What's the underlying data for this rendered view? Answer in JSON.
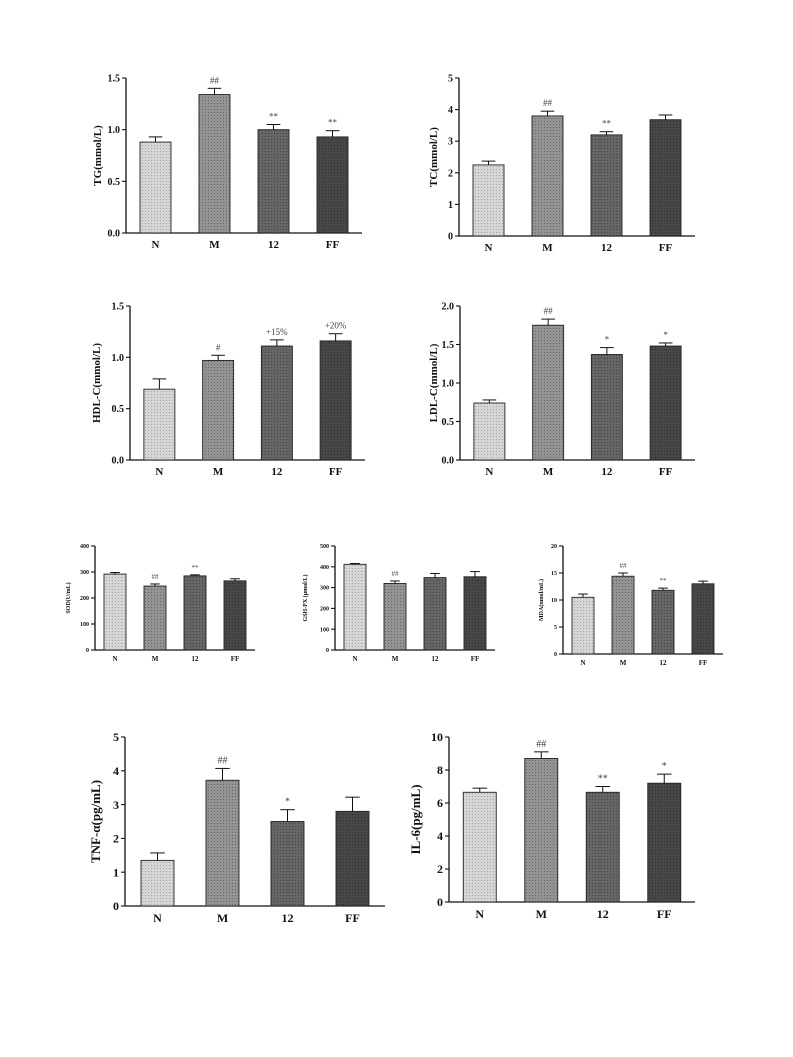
{
  "chart_data": [
    {
      "type": "bar",
      "ylabel": "TG(mmol/L)",
      "categories": [
        "N",
        "M",
        "12",
        "FF"
      ],
      "values": [
        0.88,
        1.34,
        1.0,
        0.93
      ],
      "errors": [
        0.05,
        0.06,
        0.05,
        0.06
      ],
      "annotations": [
        "",
        "##",
        "**",
        "**"
      ],
      "ylim": [
        0,
        1.5
      ],
      "yticks": [
        "0.0",
        "0.5",
        "1.0",
        "1.5"
      ]
    },
    {
      "type": "bar",
      "ylabel": "TC(mmol/L)",
      "categories": [
        "N",
        "M",
        "12",
        "FF"
      ],
      "values": [
        2.25,
        3.8,
        3.2,
        3.68
      ],
      "errors": [
        0.12,
        0.15,
        0.1,
        0.15
      ],
      "annotations": [
        "",
        "##",
        "**",
        ""
      ],
      "ylim": [
        0,
        5
      ],
      "yticks": [
        "0",
        "1",
        "2",
        "3",
        "4",
        "5"
      ]
    },
    {
      "type": "bar",
      "ylabel": "HDL-C(mmol/L)",
      "categories": [
        "N",
        "M",
        "12",
        "FF"
      ],
      "values": [
        0.69,
        0.97,
        1.11,
        1.16
      ],
      "errors": [
        0.1,
        0.05,
        0.06,
        0.07
      ],
      "annotations": [
        "",
        "#",
        "+15%",
        "+20%"
      ],
      "ylim": [
        0,
        1.5
      ],
      "yticks": [
        "0.0",
        "0.5",
        "1.0",
        "1.5"
      ]
    },
    {
      "type": "bar",
      "ylabel": "LDL-C(mmol/L)",
      "categories": [
        "N",
        "M",
        "12",
        "FF"
      ],
      "values": [
        0.74,
        1.75,
        1.37,
        1.48
      ],
      "errors": [
        0.04,
        0.08,
        0.09,
        0.04
      ],
      "annotations": [
        "",
        "##",
        "*",
        "*"
      ],
      "ylim": [
        0,
        2.0
      ],
      "yticks": [
        "0.0",
        "0.5",
        "1.0",
        "1.5",
        "2.0"
      ]
    },
    {
      "type": "bar",
      "ylabel": "SOD(U/mL)",
      "categories": [
        "N",
        "M",
        "12",
        "FF"
      ],
      "values": [
        292,
        246,
        285,
        266
      ],
      "errors": [
        6,
        8,
        4,
        8
      ],
      "annotations": [
        "",
        "##",
        "**",
        ""
      ],
      "ylim": [
        0,
        400
      ],
      "yticks": [
        "0",
        "100",
        "200",
        "300",
        "400"
      ]
    },
    {
      "type": "bar",
      "ylabel": "GSH-PX (µmol/L)",
      "categories": [
        "N",
        "M",
        "12",
        "FF"
      ],
      "values": [
        412,
        320,
        348,
        352
      ],
      "errors": [
        4,
        12,
        20,
        25
      ],
      "annotations": [
        "",
        "##",
        "",
        ""
      ],
      "ylim": [
        0,
        500
      ],
      "yticks": [
        "0",
        "100",
        "200",
        "300",
        "400",
        "500"
      ]
    },
    {
      "type": "bar",
      "ylabel": "MDA(nmol/mL)",
      "categories": [
        "N",
        "M",
        "12",
        "FF"
      ],
      "values": [
        10.5,
        14.4,
        11.8,
        13.0
      ],
      "errors": [
        0.6,
        0.6,
        0.4,
        0.5
      ],
      "annotations": [
        "",
        "##",
        "**",
        ""
      ],
      "ylim": [
        0,
        20
      ],
      "yticks": [
        "0",
        "5",
        "10",
        "15",
        "20"
      ]
    },
    {
      "type": "bar",
      "ylabel": "TNF-α(pg/mL)",
      "categories": [
        "N",
        "M",
        "12",
        "FF"
      ],
      "values": [
        1.35,
        3.72,
        2.5,
        2.8
      ],
      "errors": [
        0.22,
        0.35,
        0.35,
        0.42
      ],
      "annotations": [
        "",
        "##",
        "*",
        ""
      ],
      "ylim": [
        0,
        5
      ],
      "yticks": [
        "0",
        "1",
        "2",
        "3",
        "4",
        "5"
      ]
    },
    {
      "type": "bar",
      "ylabel": "IL-6(pg/mL)",
      "categories": [
        "N",
        "M",
        "12",
        "FF"
      ],
      "values": [
        6.65,
        8.7,
        6.65,
        7.2
      ],
      "errors": [
        0.25,
        0.4,
        0.35,
        0.55
      ],
      "annotations": [
        "",
        "##",
        "**",
        "*"
      ],
      "ylim": [
        0,
        10
      ],
      "yticks": [
        "0",
        "2",
        "4",
        "6",
        "8",
        "10"
      ]
    }
  ],
  "bar_colors": [
    "#d4d4d4",
    "#8f8f8f",
    "#656565",
    "#464646"
  ],
  "bar_stroke": "#222222"
}
